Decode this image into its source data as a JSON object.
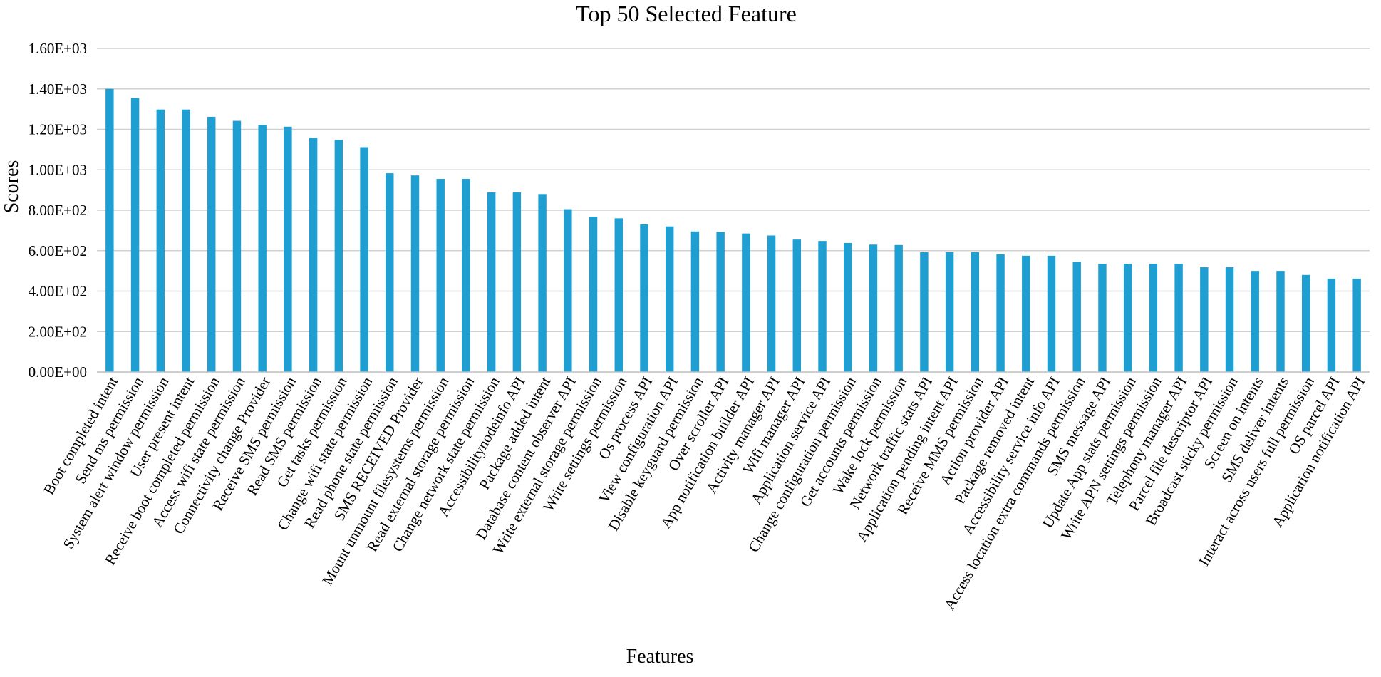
{
  "chart_data": {
    "type": "bar",
    "title": "Top 50 Selected Feature",
    "xlabel": "Features",
    "ylabel": "Scores",
    "ylim": [
      0,
      1600
    ],
    "yticks": [
      0,
      200,
      400,
      600,
      800,
      1000,
      1200,
      1400,
      1600
    ],
    "ytick_labels": [
      "0.00E+00",
      "2.00E+02",
      "4.00E+02",
      "6.00E+02",
      "8.00E+02",
      "1.00E+03",
      "1.20E+03",
      "1.40E+03",
      "1.60E+03"
    ],
    "grid": true,
    "legend": "none",
    "bar_color": "#1f9fd1",
    "categories": [
      "Boot completed intent",
      "Send ms permission",
      "System alert window permission",
      "User present intent",
      "Receive boot completed permission",
      "Access wifi state permission",
      "Connectivity change Provider",
      "Receive SMS permission",
      "Read SMS permission",
      "Get tasks permission",
      "Change wifi state permission",
      "Read phone state permission",
      "SMS RECEIVED Provider",
      "Mount unmount filesystems permission",
      "Read external storage permission",
      "Change network state permission",
      "Accessibilitynodeinfo API",
      "Package added intent",
      "Database content observer API",
      "Write external storage permission",
      "Write settings permission",
      "Os process API",
      "View configuration API",
      "Disable keyguard permission",
      "Over scroller API",
      "App notification builder API",
      "Activity manager API",
      "Wifi manager API",
      "Application service API",
      "Change configuration permission",
      "Get accounts permission",
      "Wake lock permission",
      "Network traffic stats API",
      "Application pending intent API",
      "Receive MMS permission",
      "Action provider API",
      "Package removed intent",
      "Accessibility service info API",
      "Access location extra commands permission",
      "SMS message API",
      "Update App stats permission",
      "Write APN settings permission",
      "Telephony manager API",
      "Parcel file descriptor API",
      "Broadcast sticky permission",
      "Screen on intents",
      "SMS deliver intents",
      "Interact across users full permission",
      "OS parcel API",
      "Application notification API"
    ],
    "values": [
      1400,
      1355,
      1298,
      1298,
      1262,
      1242,
      1222,
      1213,
      1158,
      1148,
      1112,
      983,
      972,
      955,
      955,
      888,
      888,
      880,
      805,
      768,
      760,
      730,
      720,
      695,
      693,
      685,
      675,
      655,
      648,
      638,
      630,
      628,
      592,
      592,
      592,
      582,
      575,
      575,
      545,
      535,
      535,
      535,
      535,
      518,
      518,
      500,
      500,
      480,
      462,
      462
    ]
  }
}
